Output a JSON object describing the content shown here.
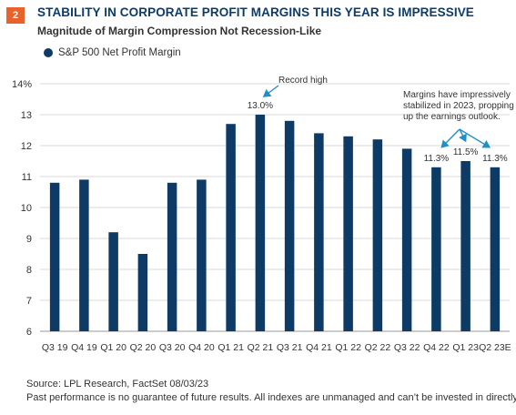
{
  "badge": "2",
  "title": "STABILITY IN CORPORATE PROFIT MARGINS THIS YEAR IS IMPRESSIVE",
  "subtitle": "Magnitude of Margin Compression Not Recession-Like",
  "colors": {
    "bar": "#0d3b66",
    "accent": "#e8632b",
    "annotation": "#1f8fc9",
    "grid": "#d9d9d9"
  },
  "chart_data": {
    "type": "bar",
    "categories": [
      "Q3 19",
      "Q4 19",
      "Q1 20",
      "Q2 20",
      "Q3 20",
      "Q4 20",
      "Q1 21",
      "Q2 21",
      "Q3 21",
      "Q4 21",
      "Q1 22",
      "Q2 22",
      "Q3 22",
      "Q4 22",
      "Q1 23",
      "Q2 23E"
    ],
    "series": [
      {
        "name": "S&P 500 Net Profit Margin",
        "values": [
          10.8,
          10.9,
          9.2,
          8.5,
          10.8,
          10.9,
          12.7,
          13.0,
          12.8,
          12.4,
          12.3,
          12.2,
          11.9,
          11.3,
          11.5,
          11.3
        ]
      }
    ],
    "ylim": [
      6,
      14
    ],
    "yticks": [
      6,
      7,
      8,
      9,
      10,
      11,
      12,
      13,
      14
    ],
    "ytick_labels": [
      "6",
      "7",
      "8",
      "9",
      "10",
      "11",
      "12",
      "13",
      "14%"
    ],
    "grid": "horizontal",
    "legend": "top-left",
    "data_labels": [
      {
        "index": 7,
        "text": "13.0%"
      },
      {
        "index": 13,
        "text": "11.3%"
      },
      {
        "index": 14,
        "text": "11.5%"
      },
      {
        "index": 15,
        "text": "11.3%"
      }
    ],
    "annotations": [
      {
        "text": "Record high",
        "targets": [
          7
        ]
      },
      {
        "lines": [
          "Margins have impressively",
          "stabilized in 2023, propping",
          "up the earnings outlook."
        ],
        "targets": [
          13,
          14,
          15
        ]
      }
    ]
  },
  "footer": {
    "source": "Source: LPL Research, FactSet  08/03/23",
    "disclaimer": "Past performance is no guarantee of future results. All indexes are unmanaged and can’t be invested in directly."
  }
}
